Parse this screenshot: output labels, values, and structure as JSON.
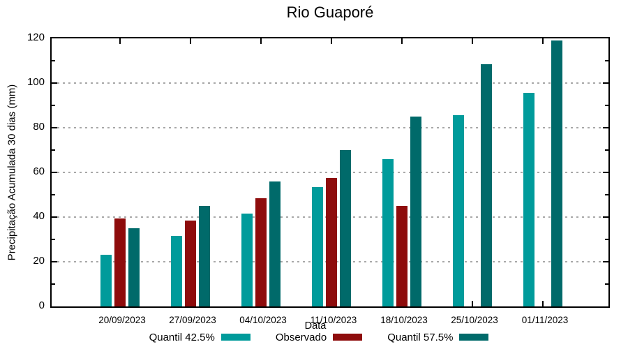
{
  "chart_data": {
    "type": "bar",
    "title": "Rio Guaporé",
    "xlabel": "Data",
    "ylabel": "Precipitação Acumulada 30 dias (mm)",
    "categories": [
      "20/09/2023",
      "27/09/2023",
      "04/10/2023",
      "11/10/2023",
      "18/10/2023",
      "25/10/2023",
      "01/11/2023"
    ],
    "series": [
      {
        "name": "Quantil 42.5%",
        "color": "#009B9B",
        "values": [
          23,
          31.5,
          41.5,
          53.5,
          66,
          85.5,
          95.5
        ]
      },
      {
        "name": "Observado",
        "color": "#8E0C0C",
        "values": [
          39.5,
          38.5,
          48.5,
          57.5,
          45,
          null,
          null
        ]
      },
      {
        "name": "Quantil 57.5%",
        "color": "#006A6A",
        "values": [
          35,
          45,
          56,
          70,
          85,
          108.5,
          119
        ]
      }
    ],
    "ylim": [
      0,
      120
    ],
    "yticks": [
      0,
      20,
      40,
      60,
      80,
      100,
      120
    ],
    "y_minor_ticks_every": 10,
    "grid": true,
    "gridline_color": "#a8a8a8",
    "legend_position": "bottom",
    "background_color": "#ffffff",
    "text_color": "#000000"
  }
}
